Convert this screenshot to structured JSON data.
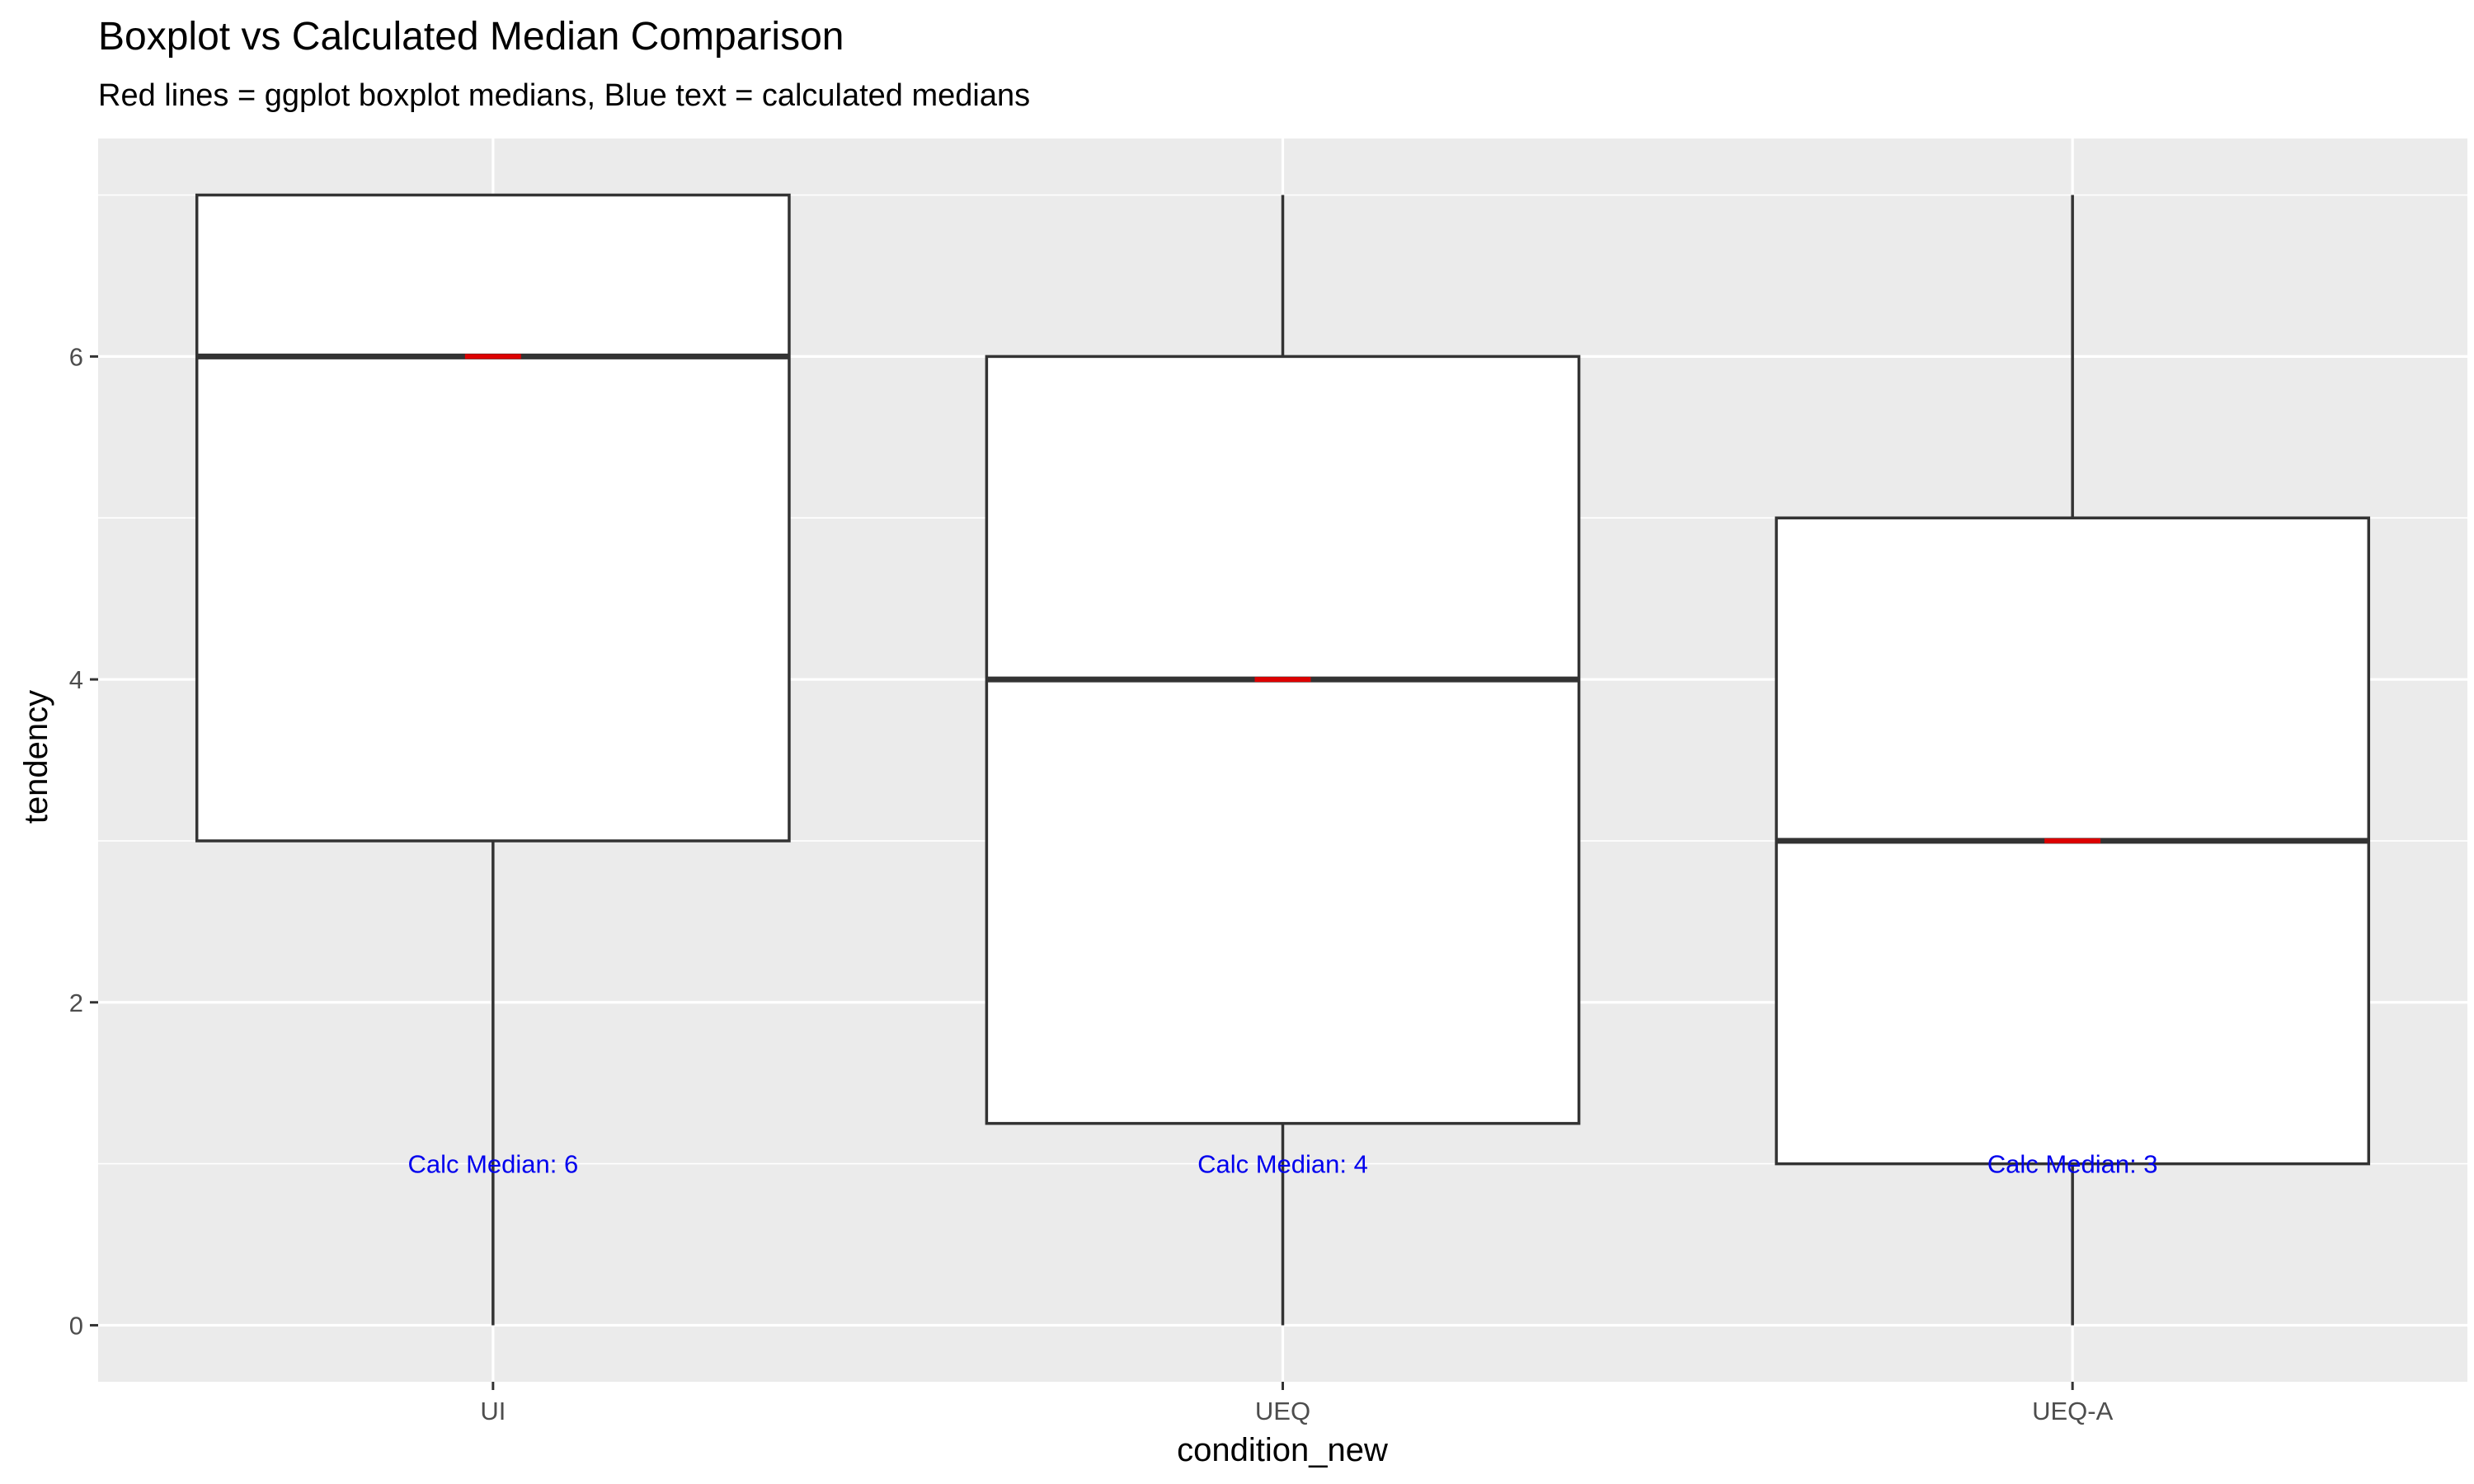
{
  "chart_data": {
    "type": "boxplot",
    "title": "Boxplot vs Calculated Median Comparison",
    "subtitle": "Red lines = ggplot boxplot medians, Blue text = calculated medians",
    "xlabel": "condition_new",
    "ylabel": "tendency",
    "ylim": [
      -0.35,
      7.35
    ],
    "y_ticks": [
      0,
      2,
      4,
      6
    ],
    "grid": true,
    "categories": [
      "UI",
      "UEQ",
      "UEQ-A"
    ],
    "boxes": [
      {
        "category": "UI",
        "min": 0,
        "q1": 3,
        "median": 6,
        "q3": 7,
        "max": 7,
        "calc_median_label": "Calc Median: 6"
      },
      {
        "category": "UEQ",
        "min": 0,
        "q1": 1.25,
        "median": 4,
        "q3": 6,
        "max": 7,
        "calc_median_label": "Calc Median: 4"
      },
      {
        "category": "UEQ-A",
        "min": 0,
        "q1": 1,
        "median": 3,
        "q3": 5,
        "max": 7,
        "calc_median_label": "Calc Median: 3"
      }
    ],
    "calc_label_y": 1,
    "colors": {
      "panel_bg": "#ebebeb",
      "grid": "#ffffff",
      "box_fill": "#ffffff",
      "box_stroke": "#333333",
      "median_marker": "#dd0000",
      "calc_text": "#0000ee"
    }
  }
}
